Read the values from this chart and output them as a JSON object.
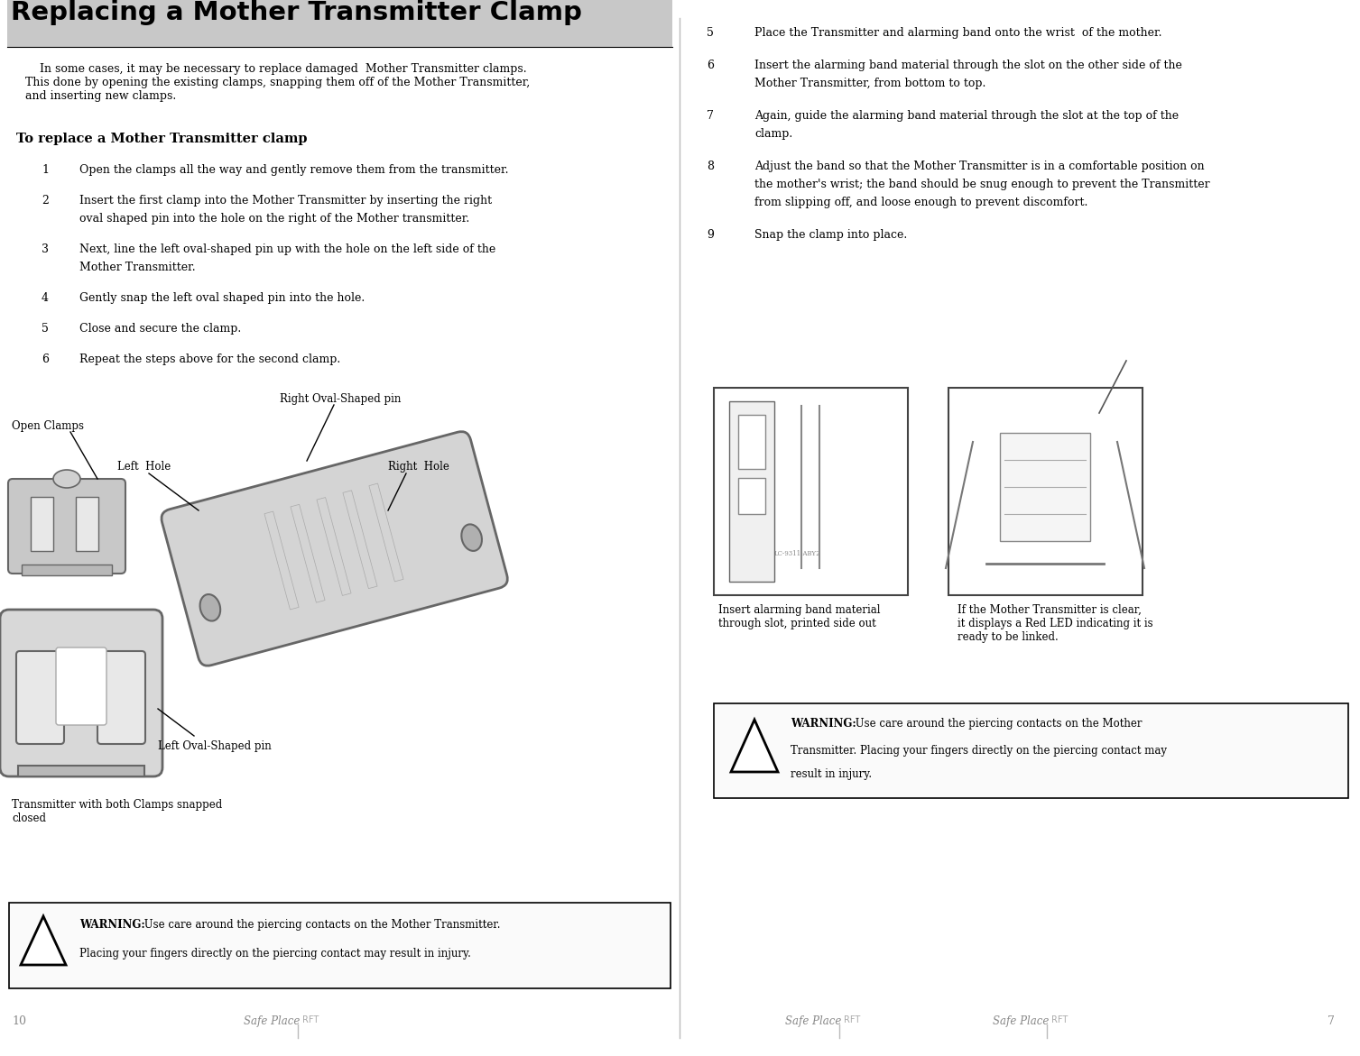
{
  "title": "Replacing a Mother Transmitter Clamp",
  "title_fontsize": 20,
  "bg_color": "#ffffff",
  "header_bar_color": "#c8c8c8",
  "intro_text": "    In some cases, it may be necessary to replace damaged  Mother Transmitter clamps.\nThis done by opening the existing clamps, snapping them off of the Mother Transmitter,\nand inserting new clamps.",
  "subheader": "To replace a Mother Transmitter clamp",
  "steps_left": [
    {
      "num": "1",
      "text": "Open the clamps all the way and gently remove them from the transmitter."
    },
    {
      "num": "2",
      "text": "Insert the first clamp into the Mother Transmitter by inserting the right\noval shaped pin into the hole on the right of the Mother transmitter."
    },
    {
      "num": "3",
      "text": "Next, line the left oval-shaped pin up with the hole on the left side of the\nMother Transmitter."
    },
    {
      "num": "4",
      "text": "Gently snap the left oval shaped pin into the hole."
    },
    {
      "num": "5",
      "text": "Close and secure the clamp."
    },
    {
      "num": "6",
      "text": "Repeat the steps above for the second clamp."
    }
  ],
  "steps_right": [
    {
      "num": "5",
      "text": "Place the Transmitter and alarming band onto the wrist  of the mother."
    },
    {
      "num": "6",
      "text": "Insert the alarming band material through the slot on the other side of the\nMother Transmitter, from bottom to top."
    },
    {
      "num": "7",
      "text": "Again, guide the alarming band material through the slot at the top of the\nclamp."
    },
    {
      "num": "8",
      "text": "Adjust the band so that the Mother Transmitter is in a comfortable position on\nthe mother's wrist; the band should be snug enough to prevent the Transmitter\nfrom slipping off, and loose enough to prevent discomfort."
    },
    {
      "num": "9",
      "text": "Snap the clamp into place."
    }
  ],
  "label_open_clamps": "Open Clamps",
  "label_right_oval": "Right Oval-Shaped pin",
  "label_left_hole": "Left  Hole",
  "label_right_hole": "Right  Hole",
  "label_left_oval": "Left Oval-Shaped pin",
  "label_transmitter_caption": "Transmitter with both Clamps snapped\nclosed",
  "warning_left_bold": "WARNING:",
  "warning_left_rest": " Use care around the piercing contacts on the Mother Transmitter.\nPlacing your fingers directly on the piercing contact may result in injury.",
  "warning_right_bold": "WARNING:",
  "warning_right_rest": " Use care around the piercing contacts on the Mother\nTransmitter. Placing your fingers directly on the piercing contact may\nresult in injury.",
  "caption_insert": "Insert alarming band material\nthrough slot, printed side out",
  "caption_led": "If the Mother Transmitter is clear,\nit displays a Red LED indicating it is\nready to be linked.",
  "page_left": "10",
  "page_right": "7",
  "footer_text": "Safe Place",
  "footer_sub": "RFT",
  "text_color": "#000000",
  "gray_text": "#888888",
  "device_color": "#c8c8c8",
  "device_edge": "#666666"
}
